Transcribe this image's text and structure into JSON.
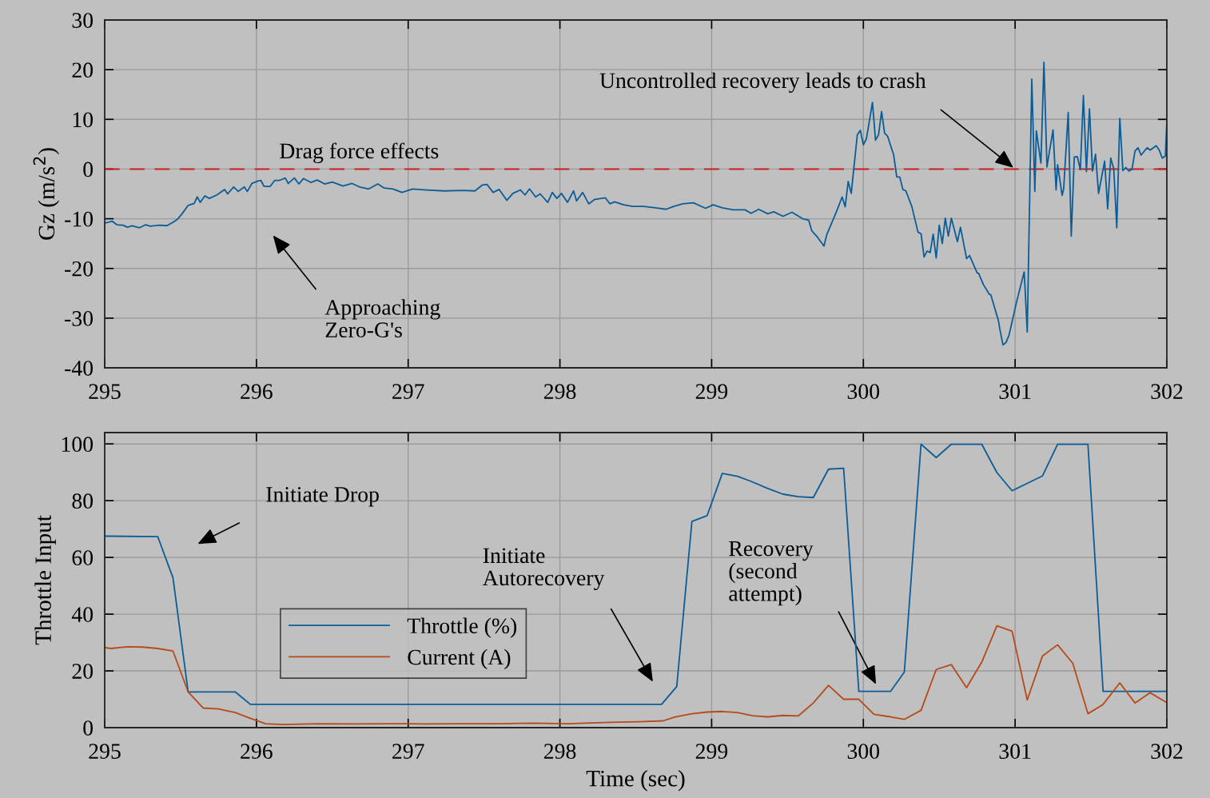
{
  "chart_data": [
    {
      "type": "line",
      "ylabel": "Gz (m/s$^{2}$)",
      "xlim": [
        295,
        302
      ],
      "xticks": [
        295,
        296,
        297,
        298,
        299,
        300,
        301,
        302
      ],
      "ylim": [
        -40,
        30
      ],
      "yticks": [
        -40,
        -30,
        -20,
        -10,
        0,
        10,
        20,
        30
      ],
      "grid": true,
      "series": [
        {
          "color": "#0c5d96",
          "x": [
            295,
            295.05,
            295.08,
            295.12,
            295.15,
            295.18,
            295.23,
            295.27,
            295.3,
            295.36,
            295.41,
            295.45,
            295.48,
            295.51,
            295.55,
            295.59,
            295.61,
            295.63,
            295.66,
            295.69,
            295.74,
            295.79,
            295.81,
            295.85,
            295.88,
            295.92,
            295.94,
            295.97,
            296.01,
            296.03,
            296.05,
            296.09,
            296.12,
            296.15,
            296.19,
            296.21,
            296.25,
            296.28,
            296.31,
            296.36,
            296.4,
            296.45,
            296.5,
            296.57,
            296.63,
            296.68,
            296.74,
            296.8,
            296.84,
            296.9,
            296.96,
            297.03,
            297.12,
            297.24,
            297.36,
            297.44,
            297.49,
            297.52,
            297.56,
            297.6,
            297.65,
            297.69,
            297.74,
            297.77,
            297.8,
            297.84,
            297.87,
            297.92,
            297.95,
            297.98,
            298.01,
            298.05,
            298.09,
            298.11,
            298.15,
            298.19,
            298.23,
            298.3,
            298.33,
            298.36,
            298.42,
            298.48,
            298.55,
            298.63,
            298.7,
            298.75,
            298.81,
            298.88,
            298.96,
            299.01,
            299.07,
            299.14,
            299.22,
            299.26,
            299.31,
            299.37,
            299.41,
            299.47,
            299.5,
            299.53,
            299.6,
            299.64,
            299.66,
            299.7,
            299.74,
            299.76,
            299.81,
            299.83,
            299.86,
            299.88,
            299.9,
            299.92,
            299.96,
            299.98,
            300.0,
            300.02,
            300.06,
            300.08,
            300.1,
            300.12,
            300.14,
            300.16,
            300.2,
            300.22,
            300.24,
            300.26,
            300.28,
            300.32,
            300.36,
            300.38,
            300.4,
            300.42,
            300.44,
            300.46,
            300.48,
            300.5,
            300.52,
            300.54,
            300.56,
            300.58,
            300.62,
            300.64,
            300.68,
            300.7,
            300.75,
            300.76,
            300.79,
            300.83,
            300.84,
            300.89,
            300.9,
            300.92,
            300.94,
            300.96,
            301.01,
            301.06,
            301.08,
            301.11,
            301.13,
            301.14,
            301.17,
            301.19,
            301.21,
            301.22,
            301.25,
            301.27,
            301.28,
            301.31,
            301.32,
            301.35,
            301.37,
            301.39,
            301.41,
            301.43,
            301.45,
            301.47,
            301.49,
            301.51,
            301.53,
            301.55,
            301.59,
            301.61,
            301.63,
            301.65,
            301.67,
            301.69,
            301.71,
            301.73,
            301.75,
            301.77,
            301.79,
            301.81,
            301.83,
            301.87,
            301.89,
            301.93,
            301.95,
            301.97,
            301.99,
            302.0
          ],
          "values": [
            -10.9,
            -10.5,
            -11.2,
            -11.3,
            -11.7,
            -11.4,
            -11.8,
            -11.2,
            -11.5,
            -11.3,
            -11.4,
            -10.7,
            -10.1,
            -9,
            -7.3,
            -6.9,
            -5.6,
            -6.7,
            -5.4,
            -5.9,
            -5.2,
            -4.1,
            -5,
            -3.6,
            -4.5,
            -3.6,
            -4.5,
            -2.9,
            -2.4,
            -2.3,
            -3.5,
            -3.5,
            -2.3,
            -2.3,
            -1.8,
            -2.9,
            -1.8,
            -3,
            -1.9,
            -2.7,
            -2.2,
            -3,
            -2.6,
            -3.4,
            -2.9,
            -3.6,
            -4,
            -3,
            -3.8,
            -4,
            -4.7,
            -4,
            -4.2,
            -4.4,
            -4.3,
            -4.4,
            -3.2,
            -3.1,
            -4.7,
            -4.1,
            -6.3,
            -4.9,
            -4.2,
            -5.2,
            -4,
            -5.6,
            -5,
            -6.7,
            -4.7,
            -5.9,
            -4.9,
            -6.7,
            -4.4,
            -6.4,
            -4.7,
            -7,
            -6.1,
            -5.8,
            -7,
            -6.6,
            -7.2,
            -7.5,
            -7.5,
            -7.8,
            -8.1,
            -7.5,
            -7,
            -6.8,
            -7.9,
            -7.2,
            -7.8,
            -8.2,
            -8.2,
            -8.9,
            -8.1,
            -9,
            -8.6,
            -9.5,
            -9.1,
            -8.7,
            -10,
            -10.3,
            -12.4,
            -13.8,
            -15.5,
            -13.1,
            -9.5,
            -8,
            -5.6,
            -7.6,
            -2.5,
            -4.9,
            6.9,
            7.8,
            4.9,
            6.1,
            13.4,
            5.8,
            6.9,
            11.6,
            7.2,
            6.6,
            2.8,
            -1.6,
            -1.6,
            -4.1,
            -4.4,
            -7.6,
            -12.7,
            -13,
            -17.7,
            -16.5,
            -16.8,
            -13.1,
            -17.9,
            -11.3,
            -15,
            -9.9,
            -13.5,
            -9.9,
            -14.6,
            -11.7,
            -18,
            -17.4,
            -20.9,
            -21,
            -23.2,
            -25.2,
            -25.3,
            -30.5,
            -32.3,
            -35.4,
            -34.9,
            -33.4,
            -26.7,
            -20.7,
            -32.8,
            18.1,
            -4.5,
            7.7,
            1.2,
            21.5,
            0.4,
            2.4,
            7.9,
            -4.2,
            0.9,
            -5.3,
            -4,
            11.4,
            -13.5,
            2.4,
            2.5,
            -0.1,
            14.8,
            -0.5,
            12.1,
            -0.4,
            3,
            -4.9,
            1.6,
            -8,
            2.2,
            0.1,
            -11.8,
            10.2,
            -0.3,
            0.3,
            -0.4,
            -0.1,
            3.6,
            4.3,
            2.8,
            4.3,
            3.8,
            4.7,
            3.8,
            2.2,
            2.6,
            9.5
          ]
        }
      ],
      "ref_lines": [
        {
          "axis": "y",
          "value": 0,
          "label": "Drag force effects",
          "color": "#cc2020",
          "line_style": "dashed"
        }
      ],
      "annotations": [
        {
          "text": "Uncontrolled recovery leads to crash",
          "x": 301.0,
          "y": 0
        },
        "Approaching\nZero-G's"
      ]
    },
    {
      "type": "line",
      "xlabel": "Time (sec)",
      "ylabel": "Throttle Input",
      "xlim": [
        295,
        302
      ],
      "xticks": [
        295,
        296,
        297,
        298,
        299,
        300,
        301,
        302
      ],
      "ylim": [
        0,
        104
      ],
      "yticks": [
        0,
        20,
        40,
        60,
        80,
        100
      ],
      "grid": true,
      "legend": "bottom left",
      "series": [
        {
          "name": "Throttle (%)",
          "color": "#0c5d96",
          "x": [
            295,
            295.35,
            295.45,
            295.55,
            295.86,
            295.96,
            298.67,
            298.77,
            298.87,
            298.97,
            299.07,
            299.17,
            299.26,
            299.37,
            299.47,
            299.57,
            299.67,
            299.77,
            299.87,
            299.97,
            300.18,
            300.27,
            300.38,
            300.48,
            300.58,
            300.78,
            300.88,
            300.98,
            301.08,
            301.18,
            301.28,
            301.48,
            301.58,
            302.0
          ],
          "values": [
            67.5,
            67.3,
            52.8,
            12.6,
            12.6,
            8.2,
            8.2,
            14.5,
            72.7,
            74.7,
            89.6,
            88.6,
            86.8,
            84.3,
            82.3,
            81.4,
            81.1,
            91.1,
            91.4,
            12.8,
            12.8,
            19.6,
            99.9,
            95.2,
            99.9,
            99.9,
            89.9,
            83.5,
            86.1,
            88.7,
            99.9,
            99.9,
            12.8,
            12.8
          ]
        },
        {
          "name": "Current (A)",
          "color": "#b54a1a",
          "x": [
            295,
            295.04,
            295.15,
            295.25,
            295.35,
            295.45,
            295.55,
            295.65,
            295.75,
            295.86,
            295.96,
            296.06,
            296.17,
            296.41,
            296.64,
            296.88,
            297.11,
            297.35,
            297.58,
            297.82,
            298.05,
            298.29,
            298.52,
            298.68,
            298.76,
            298.87,
            298.97,
            299.07,
            299.17,
            299.27,
            299.37,
            299.47,
            299.57,
            299.67,
            299.77,
            299.87,
            299.97,
            300.07,
            300.18,
            300.27,
            300.38,
            300.48,
            300.58,
            300.68,
            300.78,
            300.88,
            300.98,
            301.08,
            301.18,
            301.28,
            301.38,
            301.48,
            301.58,
            301.69,
            301.79,
            301.89,
            302.0
          ],
          "values": [
            28.2,
            27.9,
            28.5,
            28.4,
            27.9,
            27,
            12.6,
            6.9,
            6.6,
            5.3,
            3.3,
            1.4,
            1.1,
            1.4,
            1.3,
            1.4,
            1.3,
            1.4,
            1.4,
            1.6,
            1.4,
            1.8,
            2.1,
            2.4,
            3.8,
            4.9,
            5.5,
            5.7,
            5.3,
            4.2,
            3.8,
            4.3,
            4.1,
            8.7,
            14.9,
            10,
            10,
            4.7,
            3.8,
            2.9,
            6.1,
            20.5,
            22.2,
            14.1,
            23.1,
            35.9,
            34,
            9.8,
            25.2,
            29.2,
            22.7,
            4.9,
            8.2,
            15.8,
            8.7,
            12.3,
            8.8
          ]
        }
      ],
      "annotations": [
        "Initiate Drop",
        "Initiate\nAutorecovery",
        "Recovery\n(second\nattempt)"
      ]
    }
  ]
}
